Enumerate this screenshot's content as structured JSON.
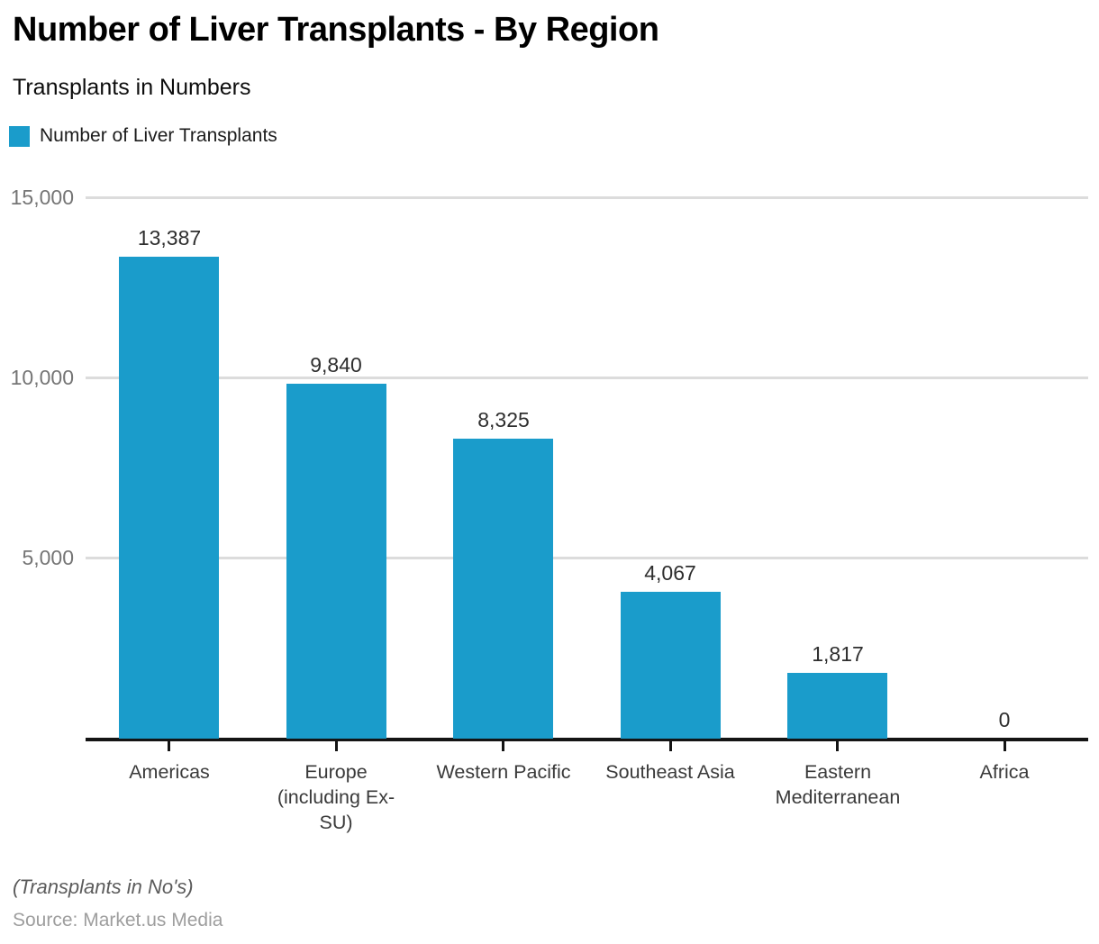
{
  "header": {
    "title": "Number of Liver Transplants - By Region",
    "subtitle": "Transplants in Numbers",
    "legend_label": "Number of Liver Transplants"
  },
  "chart_data": {
    "type": "bar",
    "title": "Number of Liver Transplants - By Region",
    "subtitle": "Transplants in Numbers",
    "legend": [
      "Number of Liver Transplants"
    ],
    "legend_position": "top-left",
    "categories": [
      "Americas",
      "Europe (including Ex-SU)",
      "Western Pacific",
      "Southeast Asia",
      "Eastern Mediterranean",
      "Africa"
    ],
    "category_wrap": [
      "Americas",
      "Europe\n(including Ex-\nSU)",
      "Western Pacific",
      "Southeast Asia",
      "Eastern\nMediterranean",
      "Africa"
    ],
    "values": [
      13387,
      9840,
      8325,
      4067,
      1817,
      0
    ],
    "value_labels": [
      "13,387",
      "9,840",
      "8,325",
      "4,067",
      "1,817",
      "0"
    ],
    "xlabel": "",
    "ylabel": "",
    "ylim": [
      0,
      15000
    ],
    "yticks": [
      5000,
      10000,
      15000
    ],
    "ytick_labels": [
      "5,000",
      "10,000",
      "15,000"
    ],
    "grid": true,
    "bar_color": "#1A9CCB"
  },
  "footer": {
    "note": "(Transplants in No's)",
    "source": "Source: Market.us Media"
  }
}
